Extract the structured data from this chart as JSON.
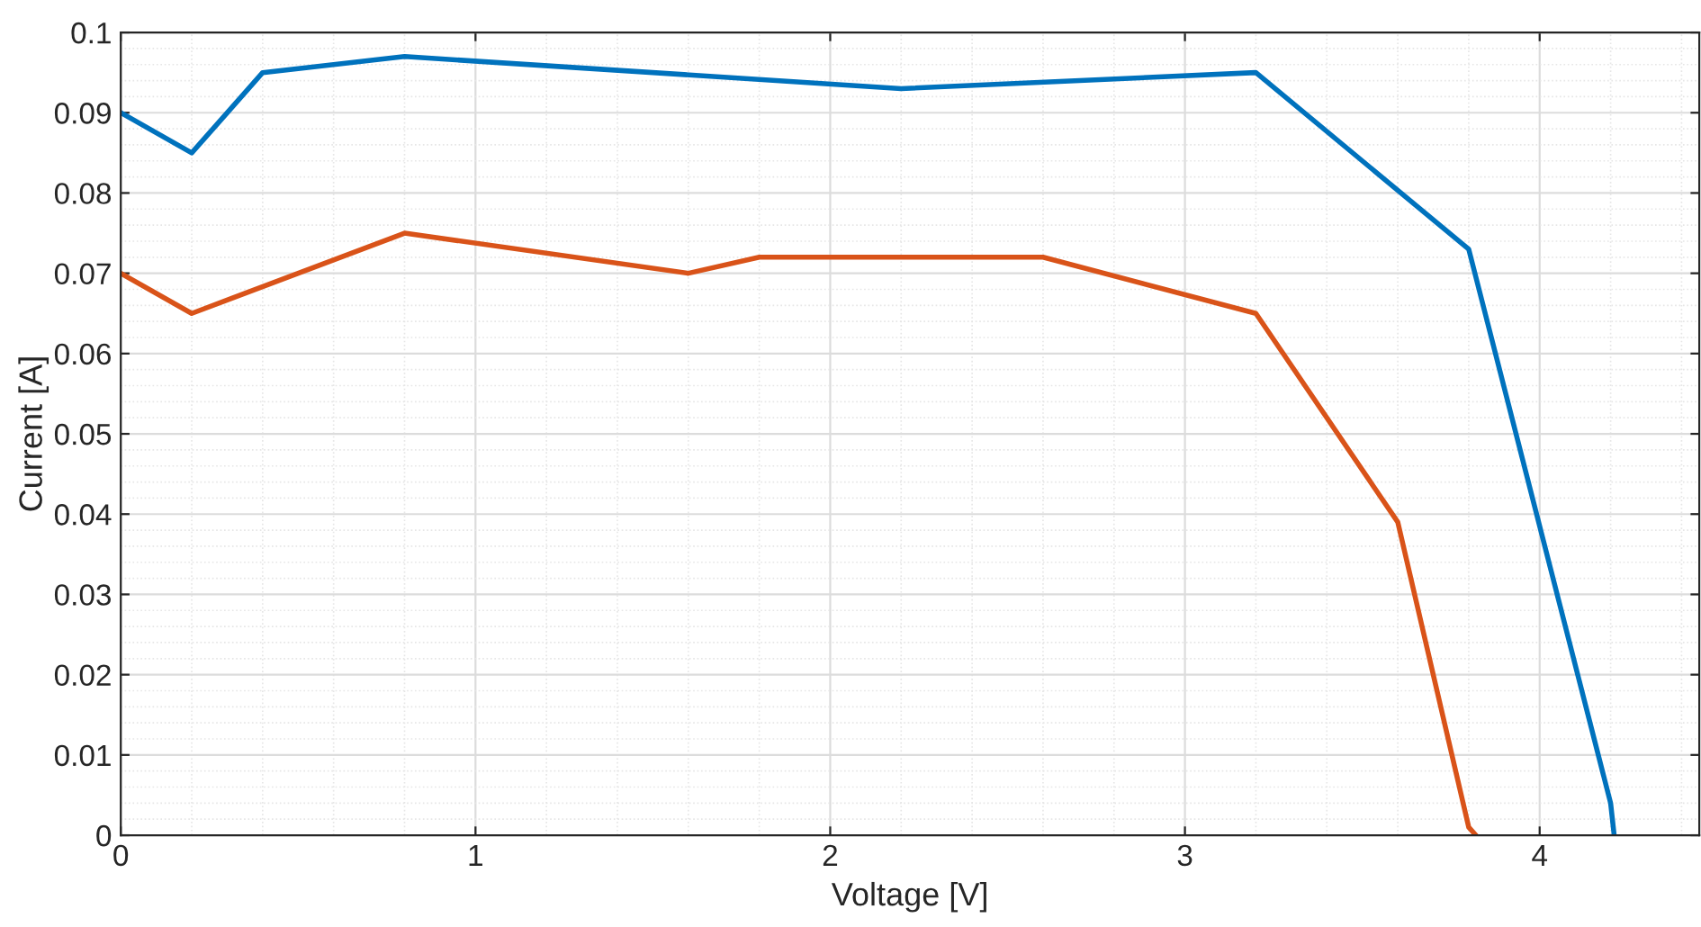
{
  "chart_data": {
    "type": "line",
    "xlabel": "Voltage [V]",
    "ylabel": "Current [A]",
    "xlim": [
      0,
      4.45
    ],
    "xticks": [
      0,
      1,
      2,
      3,
      4
    ],
    "ylim": [
      0,
      0.1
    ],
    "yticks": [
      0,
      0.01,
      0.02,
      0.03,
      0.04,
      0.05,
      0.06,
      0.07,
      0.08,
      0.09,
      0.1
    ],
    "grid": true,
    "line_style": "solid",
    "marker": "none",
    "series": [
      {
        "color": "#0072bd",
        "x": [
          0,
          0.2,
          0.4,
          0.8,
          2.2,
          3.2,
          3.8,
          4.2,
          4.21
        ],
        "values": [
          0.09,
          0.085,
          0.095,
          0.097,
          0.093,
          0.095,
          0.073,
          0.004,
          0
        ]
      },
      {
        "color": "#d95319",
        "x": [
          0,
          0.2,
          0.8,
          1.6,
          1.8,
          2.6,
          3.2,
          3.6,
          3.8,
          3.82
        ],
        "values": [
          0.07,
          0.065,
          0.075,
          0.07,
          0.072,
          0.072,
          0.065,
          0.039,
          0.001,
          0
        ]
      }
    ]
  }
}
